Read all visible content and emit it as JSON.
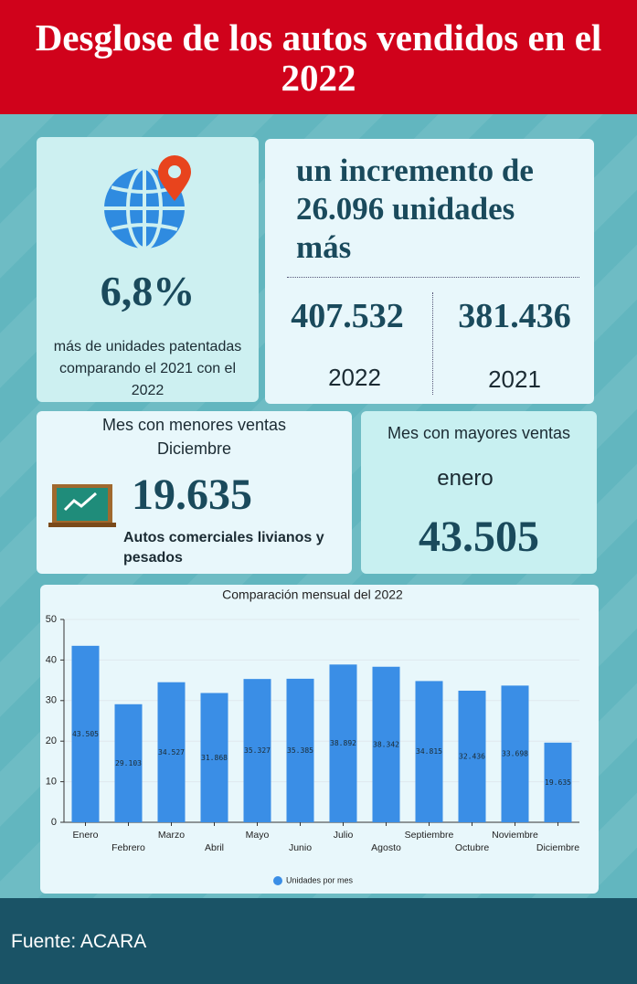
{
  "header": {
    "title": "Desglose de los autos vendidos en el 2022"
  },
  "growth_card": {
    "percent": "6,8%",
    "text": "más de unidades patentadas comparando el 2021 con el 2022"
  },
  "increase_card": {
    "headline": "un incremento de 26.096 unidades más",
    "value_2022": "407.532",
    "year_2022": "2022",
    "value_2021": "381.436",
    "year_2021": "2021"
  },
  "min_card": {
    "title": "Mes con menores ventas",
    "month": "Diciembre",
    "value": "19.635",
    "note": "Autos comerciales livianos y pesados"
  },
  "max_card": {
    "title": "Mes con mayores ventas",
    "month": "enero",
    "value": "43.505"
  },
  "chart_data": {
    "type": "bar",
    "title": "Comparación mensual del 2022",
    "categories": [
      "Enero",
      "Febrero",
      "Marzo",
      "Abril",
      "Mayo",
      "Junio",
      "Julio",
      "Agosto",
      "Septiembre",
      "Octubre",
      "Noviembre",
      "Diciembre"
    ],
    "series": [
      {
        "name": "Unidades por mes",
        "color": "#3a8ee6",
        "values": [
          43.505,
          29.103,
          34.527,
          31.868,
          35.327,
          35.385,
          38.892,
          38.342,
          34.815,
          32.436,
          33.698,
          19.635
        ]
      }
    ],
    "ylim": [
      0,
      50
    ],
    "yticks": [
      0,
      10,
      20,
      30,
      40,
      50
    ],
    "grid": true,
    "legend": "bottom"
  },
  "footer": {
    "source": "Fuente: ACARA"
  }
}
